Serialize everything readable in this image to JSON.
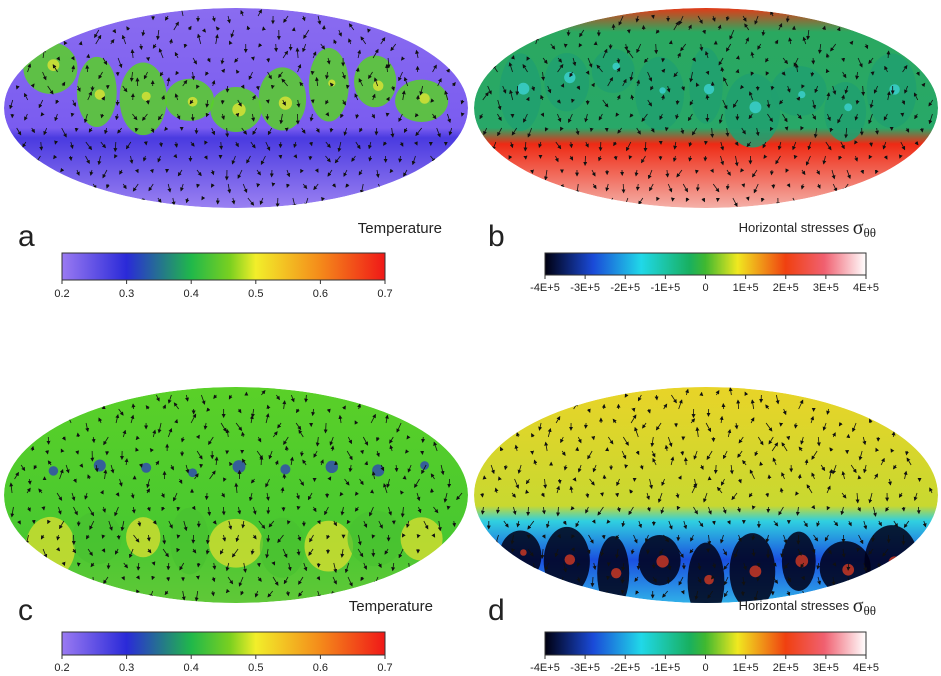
{
  "panels": [
    {
      "label": "a",
      "colorbar": {
        "title": "Temperature",
        "ticks": [
          "0.2",
          "0.3",
          "0.4",
          "0.5",
          "0.6",
          "0.7"
        ]
      }
    },
    {
      "label": "b",
      "colorbar": {
        "title": "Horizontal stresses",
        "symbol": "σ",
        "subscript": "θθ",
        "ticks": [
          "-4E+5",
          "-3E+5",
          "-2E+5",
          "-1E+5",
          "0",
          "1E+5",
          "2E+5",
          "3E+5",
          "4E+5"
        ]
      }
    },
    {
      "label": "c",
      "colorbar": {
        "title": "Temperature",
        "ticks": [
          "0.2",
          "0.3",
          "0.4",
          "0.5",
          "0.6",
          "0.7"
        ]
      }
    },
    {
      "label": "d",
      "colorbar": {
        "title": "Horizontal stresses",
        "symbol": "σ",
        "subscript": "θθ",
        "ticks": [
          "-4E+5",
          "-3E+5",
          "-2E+5",
          "-1E+5",
          "0",
          "1E+5",
          "2E+5",
          "3E+5",
          "4E+5"
        ]
      }
    }
  ]
}
